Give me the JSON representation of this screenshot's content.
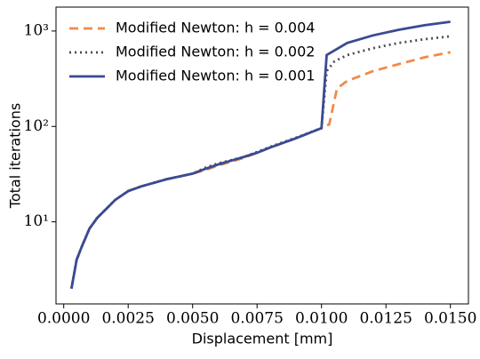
{
  "chart_data": {
    "type": "line",
    "log_y": true,
    "xlabel": "Displacement [mm]",
    "ylabel": "Total iterations",
    "legend": "upper left",
    "xlim": [
      -0.0003,
      0.0157
    ],
    "ylim": [
      1.38,
      1780
    ],
    "xticks": [
      {
        "value": 0,
        "label": "0.0000"
      },
      {
        "value": 0.0025,
        "label": "0.0025"
      },
      {
        "value": 0.005,
        "label": "0.0050"
      },
      {
        "value": 0.0075,
        "label": "0.0075"
      },
      {
        "value": 0.01,
        "label": "0.0100"
      },
      {
        "value": 0.0125,
        "label": "0.0125"
      },
      {
        "value": 0.015,
        "label": "0.0150"
      }
    ],
    "yticks": [
      {
        "value": 10,
        "label": "10¹"
      },
      {
        "value": 100,
        "label": "10²"
      },
      {
        "value": 1000,
        "label": "10³"
      }
    ],
    "series": [
      {
        "name": "Modified Newton: h = 0.004",
        "color": "#f08a4b",
        "dash": "10,6",
        "x": [
          0.0003,
          0.0005,
          0.0007,
          0.001,
          0.0013,
          0.002,
          0.0025,
          0.003,
          0.004,
          0.005,
          0.0055,
          0.006,
          0.007,
          0.0075,
          0.008,
          0.009,
          0.01,
          0.0103,
          0.0106,
          0.011,
          0.012,
          0.013,
          0.014,
          0.015
        ],
        "values": [
          2,
          4,
          5.5,
          8.5,
          11,
          17,
          21,
          23.5,
          28,
          32,
          35,
          39,
          47,
          53,
          60,
          75,
          96,
          105,
          250,
          300,
          380,
          450,
          530,
          600
        ]
      },
      {
        "name": "Modified Newton: h = 0.002",
        "color": "#4d4d4d",
        "dash": "2,4",
        "x": [
          0.0003,
          0.0005,
          0.0007,
          0.001,
          0.0013,
          0.002,
          0.0025,
          0.003,
          0.004,
          0.005,
          0.0055,
          0.006,
          0.007,
          0.0075,
          0.008,
          0.009,
          0.01,
          0.0102,
          0.0105,
          0.011,
          0.012,
          0.013,
          0.014,
          0.015
        ],
        "values": [
          2,
          4,
          5.5,
          8.5,
          11,
          17,
          21,
          23.5,
          28,
          32,
          37,
          41,
          48,
          54,
          61,
          76,
          96,
          380,
          480,
          560,
          660,
          750,
          820,
          880
        ]
      },
      {
        "name": "Modified Newton: h = 0.001",
        "color": "#3a4a94",
        "dash": "",
        "x": [
          0.0003,
          0.0005,
          0.0007,
          0.001,
          0.0013,
          0.002,
          0.0025,
          0.003,
          0.004,
          0.005,
          0.0055,
          0.006,
          0.007,
          0.0075,
          0.008,
          0.009,
          0.01,
          0.0102,
          0.011,
          0.012,
          0.013,
          0.014,
          0.015
        ],
        "values": [
          2,
          4,
          5.5,
          8.5,
          11,
          17,
          21,
          23.5,
          28,
          32,
          36,
          40,
          48,
          53,
          60,
          75,
          96,
          560,
          750,
          900,
          1030,
          1150,
          1250
        ]
      }
    ]
  }
}
